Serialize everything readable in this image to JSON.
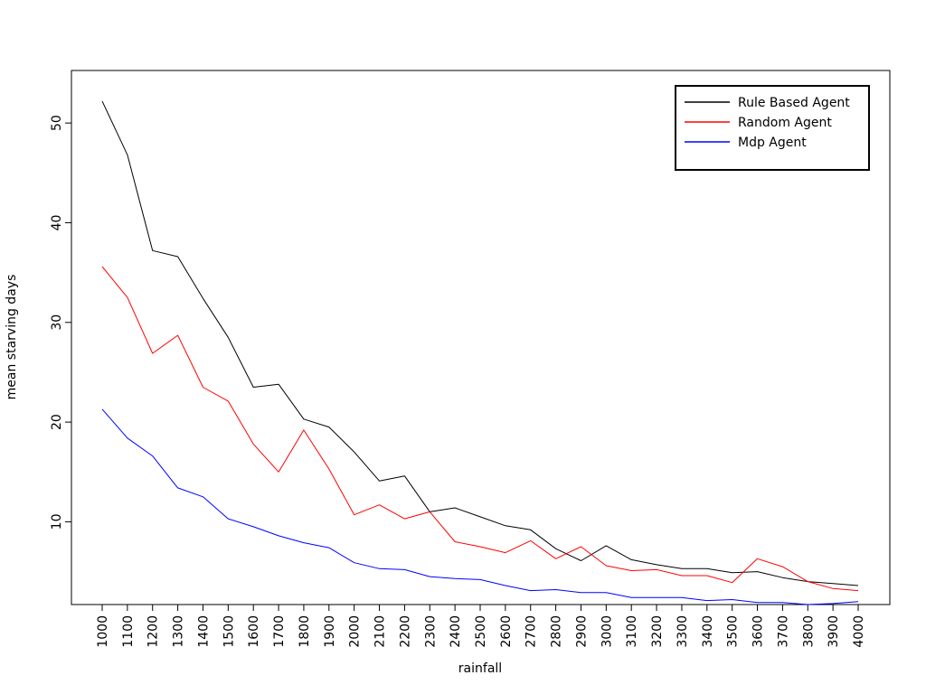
{
  "chart_data": {
    "type": "line",
    "title": "",
    "xlabel": "rainfall",
    "ylabel": "mean starving days",
    "x": [
      1000,
      1100,
      1200,
      1300,
      1400,
      1500,
      1600,
      1700,
      1800,
      1900,
      2000,
      2100,
      2200,
      2300,
      2400,
      2500,
      2600,
      2700,
      2800,
      2900,
      3000,
      3100,
      3200,
      3300,
      3400,
      3500,
      3600,
      3700,
      3800,
      3900,
      4000
    ],
    "x_tick_labels": [
      "1000",
      "1100",
      "1200",
      "1300",
      "1400",
      "1500",
      "1600",
      "1700",
      "1800",
      "1900",
      "2000",
      "2100",
      "2200",
      "2300",
      "2400",
      "2500",
      "2600",
      "2700",
      "2800",
      "2900",
      "3000",
      "3100",
      "3200",
      "3300",
      "3400",
      "3500",
      "3600",
      "3700",
      "3800",
      "3900",
      "4000"
    ],
    "y_ticks": [
      10,
      20,
      30,
      40,
      50
    ],
    "y_tick_labels": [
      "10",
      "20",
      "30",
      "40",
      "50"
    ],
    "xlim": [
      1000,
      4000
    ],
    "ylim": [
      1.7,
      54
    ],
    "grid": false,
    "legend_position": "top-right",
    "series": [
      {
        "name": "Rule Based Agent",
        "color": "#000000",
        "values": [
          52.2,
          46.8,
          37.2,
          36.6,
          32.4,
          28.5,
          23.5,
          23.8,
          20.3,
          19.5,
          17.0,
          14.1,
          14.6,
          11.0,
          11.4,
          10.5,
          9.6,
          9.2,
          7.3,
          6.1,
          7.6,
          6.2,
          5.7,
          5.3,
          5.3,
          4.9,
          5.0,
          4.4,
          4.0,
          3.8,
          3.6
        ]
      },
      {
        "name": "Random Agent",
        "color": "#ff0000",
        "values": [
          35.6,
          32.5,
          26.9,
          28.7,
          23.5,
          22.1,
          17.8,
          15.0,
          19.2,
          15.3,
          10.7,
          11.7,
          10.3,
          11.0,
          8.0,
          7.5,
          6.9,
          8.1,
          6.3,
          7.5,
          5.6,
          5.1,
          5.2,
          4.6,
          4.6,
          3.9,
          6.3,
          5.5,
          4.0,
          3.3,
          3.1
        ]
      },
      {
        "name": "Mdp Agent",
        "color": "#0000ff",
        "values": [
          21.3,
          18.4,
          16.6,
          13.4,
          12.5,
          10.3,
          9.5,
          8.6,
          7.9,
          7.4,
          5.9,
          5.3,
          5.2,
          4.5,
          4.3,
          4.2,
          3.6,
          3.1,
          3.2,
          2.9,
          2.9,
          2.4,
          2.4,
          2.4,
          2.1,
          2.2,
          1.9,
          1.9,
          1.7,
          1.8,
          2.0
        ]
      }
    ]
  }
}
